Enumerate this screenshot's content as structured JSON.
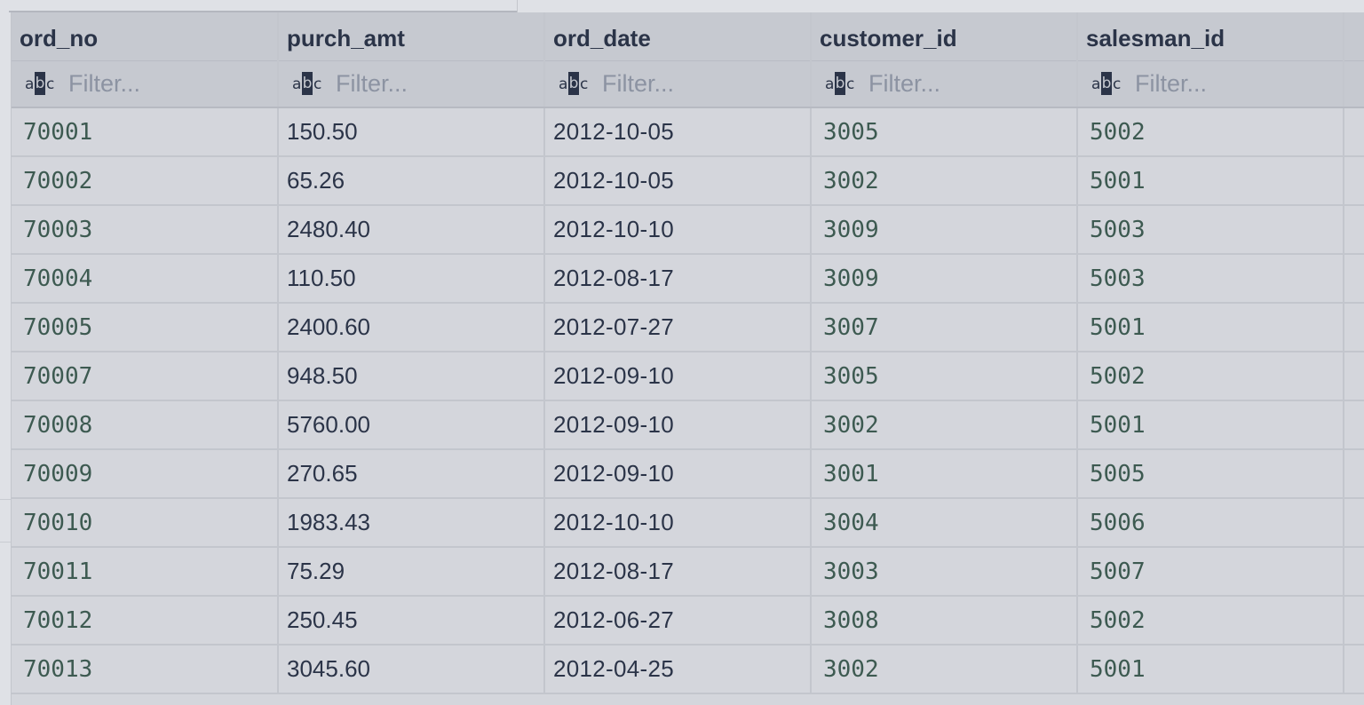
{
  "table": {
    "columns": [
      {
        "name": "ord_no"
      },
      {
        "name": "purch_amt"
      },
      {
        "name": "ord_date"
      },
      {
        "name": "customer_id"
      },
      {
        "name": "salesman_id"
      }
    ],
    "filter": {
      "icon_name": "abc-text-icon",
      "placeholder": "Filter..."
    },
    "rows": [
      [
        "70001",
        "150.50",
        "2012-10-05",
        "3005",
        "5002"
      ],
      [
        "70002",
        "65.26",
        "2012-10-05",
        "3002",
        "5001"
      ],
      [
        "70003",
        "2480.40",
        "2012-10-10",
        "3009",
        "5003"
      ],
      [
        "70004",
        "110.50",
        "2012-08-17",
        "3009",
        "5003"
      ],
      [
        "70005",
        "2400.60",
        "2012-07-27",
        "3007",
        "5001"
      ],
      [
        "70007",
        "948.50",
        "2012-09-10",
        "3005",
        "5002"
      ],
      [
        "70008",
        "5760.00",
        "2012-09-10",
        "3002",
        "5001"
      ],
      [
        "70009",
        "270.65",
        "2012-09-10",
        "3001",
        "5005"
      ],
      [
        "70010",
        "1983.43",
        "2012-10-10",
        "3004",
        "5006"
      ],
      [
        "70011",
        "75.29",
        "2012-08-17",
        "3003",
        "5007"
      ],
      [
        "70012",
        "250.45",
        "2012-06-27",
        "3008",
        "5002"
      ],
      [
        "70013",
        "3045.60",
        "2012-04-25",
        "3002",
        "5001"
      ]
    ]
  },
  "colors": {
    "background": "#d4d6dc",
    "header_background": "#c6c9d0",
    "header_text": "#2b3448",
    "id_text": "#3d5a51",
    "placeholder_text": "#8c93a2",
    "grid_line": "#c3c6cd"
  }
}
